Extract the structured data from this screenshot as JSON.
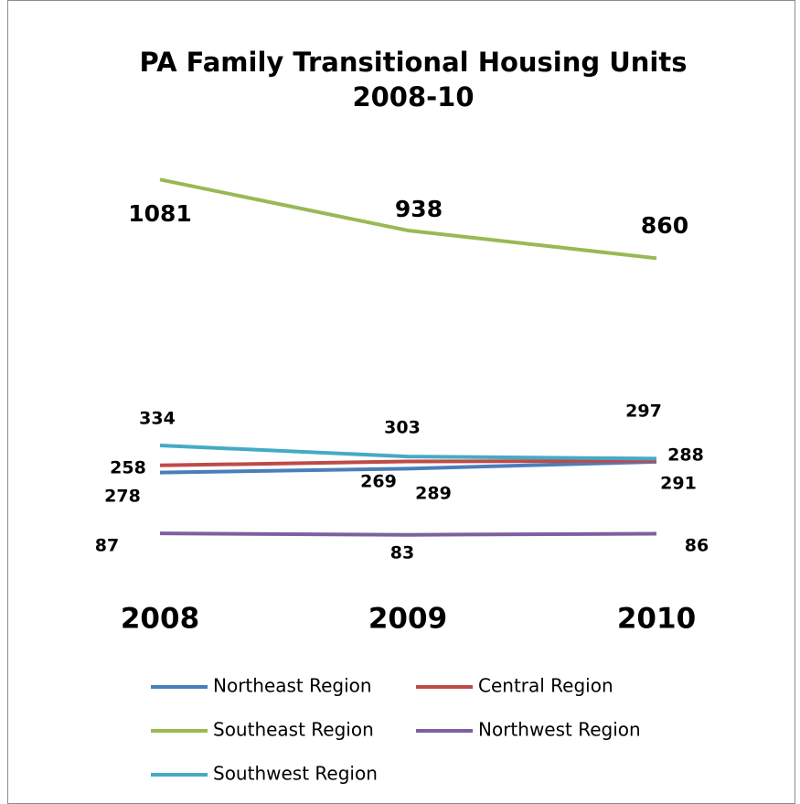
{
  "chart_data": {
    "type": "line",
    "title": "PA Family Transitional Housing Units",
    "subtitle": "2008-10",
    "categories": [
      "2008",
      "2009",
      "2010"
    ],
    "series": [
      {
        "name": "Northeast Region",
        "color": "#4a7ebb",
        "values": [
          258,
          269,
          288
        ]
      },
      {
        "name": "Central Region",
        "color": "#be4b48",
        "values": [
          278,
          289,
          291
        ]
      },
      {
        "name": "Southeast Region",
        "color": "#98b954",
        "values": [
          1081,
          938,
          860
        ]
      },
      {
        "name": "Northwest Region",
        "color": "#7d60a0",
        "values": [
          87,
          83,
          86
        ]
      },
      {
        "name": "Southwest Region",
        "color": "#46aac5",
        "values": [
          334,
          303,
          297
        ]
      }
    ],
    "ylim": [
      0,
      1200
    ],
    "grid": false
  }
}
